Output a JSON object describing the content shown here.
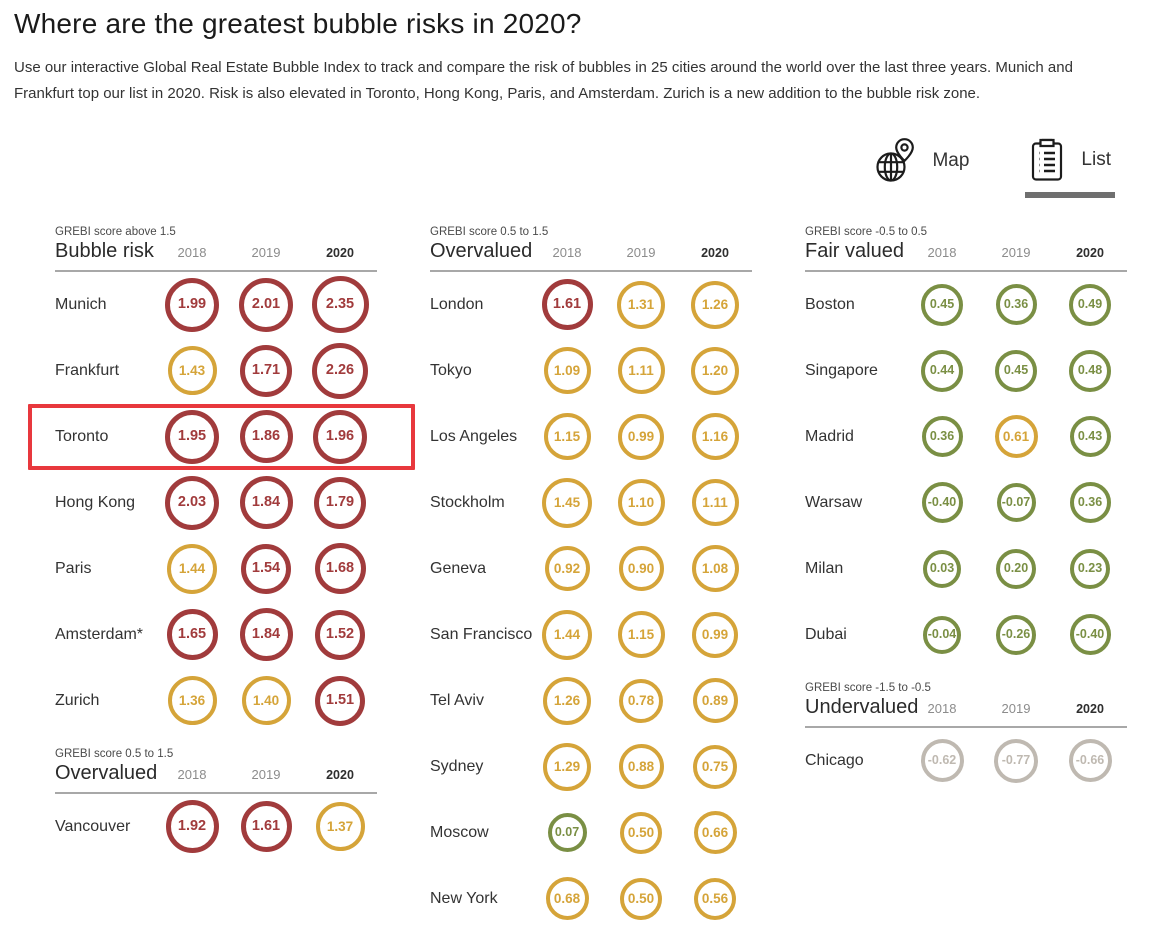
{
  "page": {
    "title": "Where are the greatest bubble risks in 2020?",
    "subtitle": "Use our interactive Global Real Estate Bubble Index to track and compare the risk of bubbles in 25 cities around the world over the last three years. Munich and Frankfurt top our list in 2020. Risk is also elevated in Toronto, Hong Kong, Paris, and Amsterdam. Zurich is a new addition to the bubble risk zone."
  },
  "view_toggle": {
    "map_label": "Map",
    "list_label": "List",
    "active": "List"
  },
  "colors": {
    "bubble_risk": "#A13B3C",
    "overvalued": "#D5A439",
    "fair_valued": "#7A8F44",
    "undervalued": "#BFB9B1",
    "highlight_box": "#E8383D",
    "active_tab_underline": "#6f6f6f"
  },
  "score_bands": [
    {
      "min": 1.5,
      "name": "bubble-risk",
      "color": "#A13B3C",
      "border": 5,
      "font": 14.5
    },
    {
      "min": 0.5,
      "name": "overvalued",
      "color": "#D5A439",
      "border": 4.5,
      "font": 13.5
    },
    {
      "min": -0.5,
      "name": "fair-valued",
      "color": "#7A8F44",
      "border": 4,
      "font": 12.5
    },
    {
      "min": -99,
      "name": "undervalued",
      "color": "#BFB9B1",
      "border": 4,
      "font": 12.5
    }
  ],
  "chart_data": {
    "type": "table",
    "title": "Global Real Estate Bubble Index (GREBI) scores by city, 2018-2020",
    "years": [
      "2018",
      "2019",
      "2020"
    ],
    "columns": [
      {
        "sections": [
          {
            "note": "GREBI score above 1.5",
            "category": "Bubble risk",
            "cities": [
              {
                "name": "Munich",
                "values": [
                  "1.99",
                  "2.01",
                  "2.35"
                ]
              },
              {
                "name": "Frankfurt",
                "values": [
                  "1.43",
                  "1.71",
                  "2.26"
                ]
              },
              {
                "name": "Toronto",
                "values": [
                  "1.95",
                  "1.86",
                  "1.96"
                ],
                "highlighted": true
              },
              {
                "name": "Hong Kong",
                "values": [
                  "2.03",
                  "1.84",
                  "1.79"
                ]
              },
              {
                "name": "Paris",
                "values": [
                  "1.44",
                  "1.54",
                  "1.68"
                ]
              },
              {
                "name": "Amsterdam*",
                "values": [
                  "1.65",
                  "1.84",
                  "1.52"
                ]
              },
              {
                "name": "Zurich",
                "values": [
                  "1.36",
                  "1.40",
                  "1.51"
                ]
              }
            ]
          },
          {
            "note": "GREBI score 0.5 to 1.5",
            "category": "Overvalued",
            "cities": [
              {
                "name": "Vancouver",
                "values": [
                  "1.92",
                  "1.61",
                  "1.37"
                ]
              }
            ]
          }
        ]
      },
      {
        "sections": [
          {
            "note": "GREBI score 0.5 to 1.5",
            "category": "Overvalued",
            "cities": [
              {
                "name": "London",
                "values": [
                  "1.61",
                  "1.31",
                  "1.26"
                ]
              },
              {
                "name": "Tokyo",
                "values": [
                  "1.09",
                  "1.11",
                  "1.20"
                ]
              },
              {
                "name": "Los Angeles",
                "values": [
                  "1.15",
                  "0.99",
                  "1.16"
                ]
              },
              {
                "name": "Stockholm",
                "values": [
                  "1.45",
                  "1.10",
                  "1.11"
                ]
              },
              {
                "name": "Geneva",
                "values": [
                  "0.92",
                  "0.90",
                  "1.08"
                ]
              },
              {
                "name": "San Francisco",
                "values": [
                  "1.44",
                  "1.15",
                  "0.99"
                ]
              },
              {
                "name": "Tel Aviv",
                "values": [
                  "1.26",
                  "0.78",
                  "0.89"
                ]
              },
              {
                "name": "Sydney",
                "values": [
                  "1.29",
                  "0.88",
                  "0.75"
                ]
              },
              {
                "name": "Moscow",
                "values": [
                  "0.07",
                  "0.50",
                  "0.66"
                ]
              },
              {
                "name": "New York",
                "values": [
                  "0.68",
                  "0.50",
                  "0.56"
                ]
              }
            ]
          }
        ]
      },
      {
        "sections": [
          {
            "note": "GREBI score -0.5 to 0.5",
            "category": "Fair valued",
            "cities": [
              {
                "name": "Boston",
                "values": [
                  "0.45",
                  "0.36",
                  "0.49"
                ]
              },
              {
                "name": "Singapore",
                "values": [
                  "0.44",
                  "0.45",
                  "0.48"
                ]
              },
              {
                "name": "Madrid",
                "values": [
                  "0.36",
                  "0.61",
                  "0.43"
                ]
              },
              {
                "name": "Warsaw",
                "values": [
                  "-0.40",
                  "-0.07",
                  "0.36"
                ]
              },
              {
                "name": "Milan",
                "values": [
                  "0.03",
                  "0.20",
                  "0.23"
                ]
              },
              {
                "name": "Dubai",
                "values": [
                  "-0.04",
                  "-0.26",
                  "-0.40"
                ]
              }
            ]
          },
          {
            "note": "GREBI score -1.5 to -0.5",
            "category": "Undervalued",
            "cities": [
              {
                "name": "Chicago",
                "values": [
                  "-0.62",
                  "-0.77",
                  "-0.66"
                ]
              }
            ]
          }
        ]
      }
    ]
  }
}
